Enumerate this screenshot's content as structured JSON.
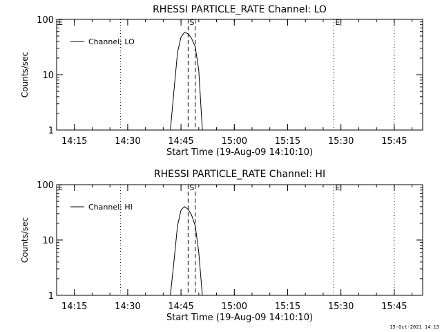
{
  "footer": {
    "timestamp": "15-Oct-2021 14:13"
  },
  "colors": {
    "background": "#ffffff",
    "foreground": "#000000"
  },
  "chart_data": [
    {
      "type": "line",
      "title": "RHESSI PARTICLE_RATE Channel: LO",
      "xlabel": "Start Time (19-Aug-09 14:10:10)",
      "ylabel": "Counts/sec",
      "yscale": "log",
      "xlim": [
        "14:10",
        "15:53"
      ],
      "ylim": [
        1,
        100
      ],
      "x_ticks": [
        "14:15",
        "14:30",
        "14:45",
        "15:00",
        "15:15",
        "15:30",
        "15:45"
      ],
      "y_ticks": [
        "1",
        "10",
        "100"
      ],
      "legend": {
        "placement": "top-left",
        "entries": [
          "Channel: LO"
        ]
      },
      "markers": [
        {
          "label": "E",
          "time": "14:10",
          "style": "dotted"
        },
        {
          "label": "",
          "time": "14:28",
          "style": "dotted"
        },
        {
          "label": "S",
          "time": "14:47",
          "style": "dashed"
        },
        {
          "label": "",
          "time": "14:49",
          "style": "dashed"
        },
        {
          "label": "E",
          "time": "15:28",
          "style": "dotted"
        },
        {
          "label": "",
          "time": "15:45",
          "style": "dotted"
        }
      ],
      "series": [
        {
          "name": "Channel: LO",
          "points": [
            [
              "14:42",
              1
            ],
            [
              "14:43",
              5
            ],
            [
              "14:44",
              25
            ],
            [
              "14:45",
              48
            ],
            [
              "14:46",
              58
            ],
            [
              "14:47",
              55
            ],
            [
              "14:48",
              45
            ],
            [
              "14:49",
              32
            ],
            [
              "14:50",
              12
            ],
            [
              "14:51",
              1
            ]
          ]
        }
      ]
    },
    {
      "type": "line",
      "title": "RHESSI PARTICLE_RATE Channel: HI",
      "xlabel": "Start Time (19-Aug-09 14:10:10)",
      "ylabel": "Counts/sec",
      "yscale": "log",
      "xlim": [
        "14:10",
        "15:53"
      ],
      "ylim": [
        1,
        100
      ],
      "x_ticks": [
        "14:15",
        "14:30",
        "14:45",
        "15:00",
        "15:15",
        "15:30",
        "15:45"
      ],
      "y_ticks": [
        "1",
        "10",
        "100"
      ],
      "legend": {
        "placement": "top-left",
        "entries": [
          "Channel: HI"
        ]
      },
      "markers": [
        {
          "label": "E",
          "time": "14:10",
          "style": "dotted"
        },
        {
          "label": "",
          "time": "14:28",
          "style": "dotted"
        },
        {
          "label": "S",
          "time": "14:47",
          "style": "dashed"
        },
        {
          "label": "",
          "time": "14:49",
          "style": "dashed"
        },
        {
          "label": "E",
          "time": "15:28",
          "style": "dotted"
        },
        {
          "label": "",
          "time": "15:45",
          "style": "dotted"
        }
      ],
      "series": [
        {
          "name": "Channel: HI",
          "points": [
            [
              "14:42",
              1
            ],
            [
              "14:43",
              4
            ],
            [
              "14:44",
              18
            ],
            [
              "14:45",
              35
            ],
            [
              "14:46",
              40
            ],
            [
              "14:47",
              36
            ],
            [
              "14:48",
              28
            ],
            [
              "14:49",
              18
            ],
            [
              "14:50",
              6
            ],
            [
              "14:51",
              1
            ]
          ]
        }
      ]
    }
  ]
}
